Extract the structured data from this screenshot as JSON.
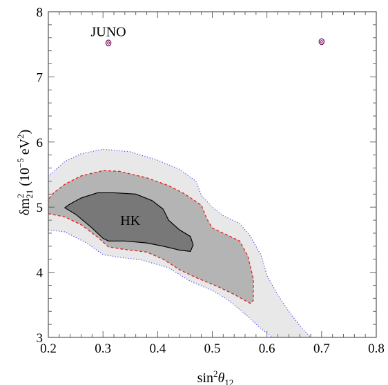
{
  "chart_data": {
    "type": "contour",
    "xlabel": "sin²θ₁₂",
    "xlabel_parts": {
      "base": "sin",
      "sup": "2",
      "theta": "θ",
      "sub": "12"
    },
    "ylabel": "δm²₂₁ (10⁻⁵ eV²)",
    "ylabel_parts": {
      "delta": "δm",
      "sup": "2",
      "sub": "21",
      "rest": " (10",
      "exp": "−5",
      "unit": " eV",
      "unitsup": "2",
      "close": ")"
    },
    "xlim": [
      0.2,
      0.8
    ],
    "ylim": [
      3,
      8
    ],
    "x_ticks": [
      {
        "v": 0.2,
        "label": "0.2"
      },
      {
        "v": 0.3,
        "label": "0.3"
      },
      {
        "v": 0.4,
        "label": "0.4"
      },
      {
        "v": 0.5,
        "label": "0.5"
      },
      {
        "v": 0.6,
        "label": "0.6"
      },
      {
        "v": 0.7,
        "label": "0.7"
      },
      {
        "v": 0.8,
        "label": "0.8"
      }
    ],
    "y_ticks": [
      {
        "v": 3,
        "label": "3"
      },
      {
        "v": 4,
        "label": "4"
      },
      {
        "v": 5,
        "label": "5"
      },
      {
        "v": 6,
        "label": "6"
      },
      {
        "v": 7,
        "label": "7"
      },
      {
        "v": 8,
        "label": "8"
      }
    ],
    "annotations": [
      {
        "text": "HK",
        "x": 0.35,
        "y": 4.8
      },
      {
        "text": "JUNO",
        "x": 0.31,
        "y": 7.7
      }
    ],
    "colors": {
      "outer_fill": "#e8e8e8",
      "middle_fill": "#b4b4b4",
      "inner_fill": "#787878",
      "outer_border": "#4a4aff",
      "middle_border": "#e02020",
      "inner_border": "#000000",
      "juno": "#7a1a6a"
    },
    "regions": [
      {
        "name": "HK outer",
        "style": "outer",
        "points": [
          [
            0.2,
            4.65
          ],
          [
            0.23,
            4.62
          ],
          [
            0.27,
            4.45
          ],
          [
            0.3,
            4.27
          ],
          [
            0.33,
            4.23
          ],
          [
            0.37,
            4.19
          ],
          [
            0.42,
            4.07
          ],
          [
            0.46,
            3.86
          ],
          [
            0.5,
            3.72
          ],
          [
            0.53,
            3.57
          ],
          [
            0.56,
            3.36
          ],
          [
            0.59,
            3.13
          ],
          [
            0.61,
            3.0
          ],
          [
            0.68,
            3.0
          ],
          [
            0.66,
            3.18
          ],
          [
            0.64,
            3.4
          ],
          [
            0.62,
            3.65
          ],
          [
            0.6,
            3.95
          ],
          [
            0.59,
            4.25
          ],
          [
            0.57,
            4.55
          ],
          [
            0.55,
            4.75
          ],
          [
            0.52,
            4.87
          ],
          [
            0.5,
            5.0
          ],
          [
            0.48,
            5.18
          ],
          [
            0.47,
            5.4
          ],
          [
            0.44,
            5.58
          ],
          [
            0.4,
            5.72
          ],
          [
            0.35,
            5.85
          ],
          [
            0.3,
            5.89
          ],
          [
            0.26,
            5.82
          ],
          [
            0.23,
            5.7
          ],
          [
            0.21,
            5.55
          ],
          [
            0.2,
            5.48
          ]
        ]
      },
      {
        "name": "HK middle",
        "style": "middle",
        "points": [
          [
            0.2,
            4.9
          ],
          [
            0.23,
            4.85
          ],
          [
            0.26,
            4.73
          ],
          [
            0.29,
            4.54
          ],
          [
            0.31,
            4.39
          ],
          [
            0.34,
            4.35
          ],
          [
            0.38,
            4.31
          ],
          [
            0.41,
            4.2
          ],
          [
            0.44,
            4.04
          ],
          [
            0.47,
            3.92
          ],
          [
            0.51,
            3.78
          ],
          [
            0.54,
            3.66
          ],
          [
            0.57,
            3.52
          ],
          [
            0.575,
            3.57
          ],
          [
            0.575,
            3.9
          ],
          [
            0.565,
            4.25
          ],
          [
            0.55,
            4.48
          ],
          [
            0.53,
            4.56
          ],
          [
            0.5,
            4.68
          ],
          [
            0.49,
            4.82
          ],
          [
            0.48,
            5.03
          ],
          [
            0.45,
            5.2
          ],
          [
            0.42,
            5.33
          ],
          [
            0.38,
            5.45
          ],
          [
            0.33,
            5.55
          ],
          [
            0.3,
            5.56
          ],
          [
            0.26,
            5.48
          ],
          [
            0.23,
            5.35
          ],
          [
            0.21,
            5.22
          ],
          [
            0.2,
            5.12
          ]
        ]
      },
      {
        "name": "HK inner",
        "style": "inner",
        "points": [
          [
            0.23,
            4.99
          ],
          [
            0.25,
            4.89
          ],
          [
            0.28,
            4.68
          ],
          [
            0.3,
            4.52
          ],
          [
            0.31,
            4.48
          ],
          [
            0.34,
            4.48
          ],
          [
            0.38,
            4.45
          ],
          [
            0.41,
            4.4
          ],
          [
            0.44,
            4.34
          ],
          [
            0.46,
            4.32
          ],
          [
            0.465,
            4.42
          ],
          [
            0.46,
            4.55
          ],
          [
            0.44,
            4.65
          ],
          [
            0.42,
            4.8
          ],
          [
            0.41,
            4.97
          ],
          [
            0.39,
            5.1
          ],
          [
            0.36,
            5.2
          ],
          [
            0.32,
            5.22
          ],
          [
            0.29,
            5.22
          ],
          [
            0.26,
            5.14
          ],
          [
            0.24,
            5.05
          ]
        ]
      }
    ],
    "juno_points": [
      {
        "x": 0.31,
        "y": 7.52
      },
      {
        "x": 0.7,
        "y": 7.54
      }
    ]
  }
}
